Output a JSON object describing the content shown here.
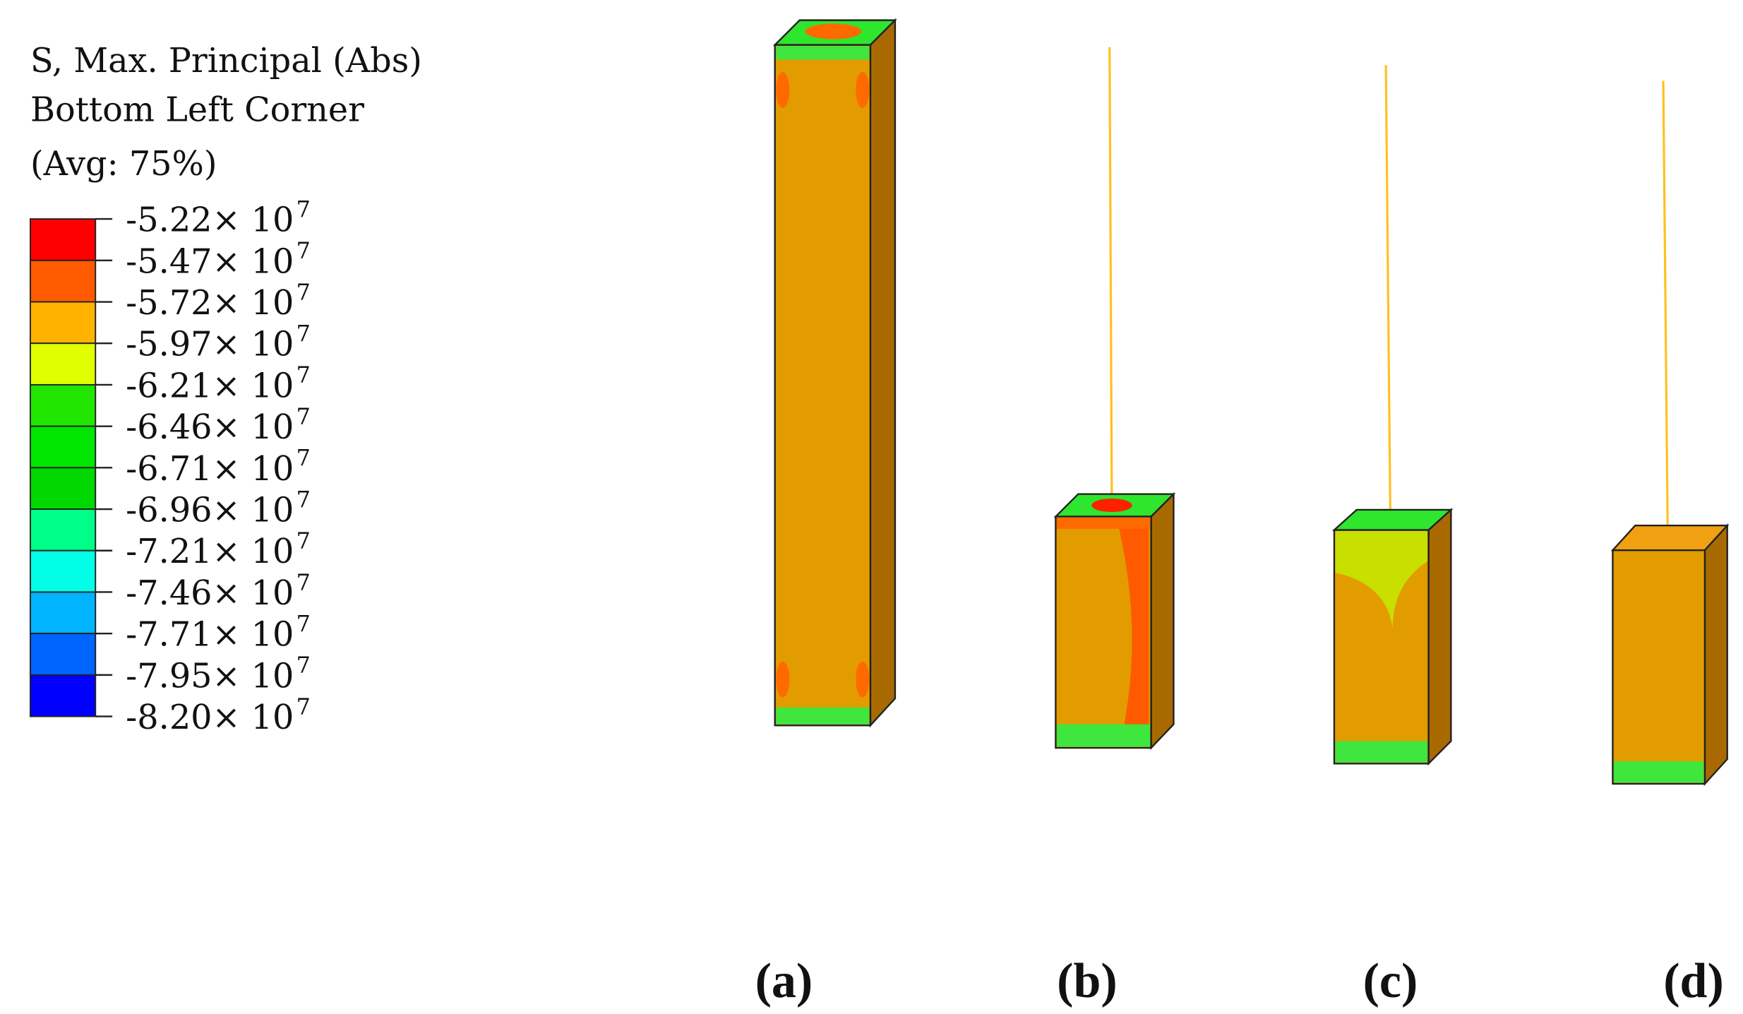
{
  "legend": {
    "title": [
      "S, Max. Principal (Abs)",
      "Bottom Left Corner",
      "(Avg: 75%)"
    ],
    "labels": [
      {
        "text": "-5.22× 10",
        "exponent": "7"
      },
      {
        "text": "-5.47× 10",
        "exponent": "7"
      },
      {
        "text": "-5.72× 10",
        "exponent": "7"
      },
      {
        "text": "-5.97× 10",
        "exponent": "7"
      },
      {
        "text": "-6.21× 10",
        "exponent": "7"
      },
      {
        "text": "-6.46× 10",
        "exponent": "7"
      },
      {
        "text": "-6.71× 10",
        "exponent": "7"
      },
      {
        "text": "-6.96× 10",
        "exponent": "7"
      },
      {
        "text": "-7.21× 10",
        "exponent": "7"
      },
      {
        "text": "-7.46× 10",
        "exponent": "7"
      },
      {
        "text": "-7.71× 10",
        "exponent": "7"
      },
      {
        "text": "-7.95× 10",
        "exponent": "7"
      },
      {
        "text": "-8.20× 10",
        "exponent": "7"
      }
    ],
    "colors": [
      "#ff0000",
      "#ff5a00",
      "#ffb300",
      "#e0ff00",
      "#22e600",
      "#00e600",
      "#00d800",
      "#00ff88",
      "#00ffe6",
      "#00b4ff",
      "#0064ff",
      "#0000ff"
    ]
  },
  "panels": [
    "(a)",
    "(b)",
    "(c)",
    "(d)"
  ]
}
